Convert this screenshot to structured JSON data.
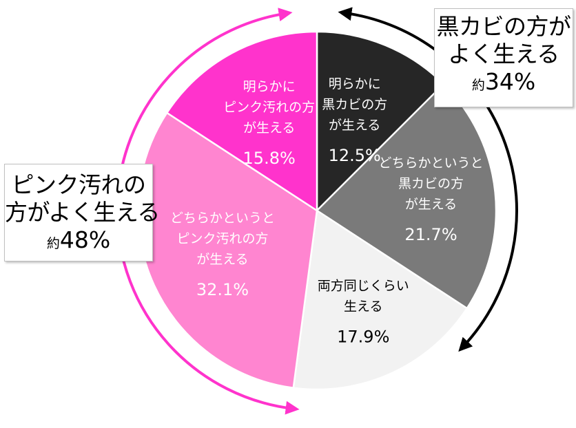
{
  "chart_data": {
    "type": "pie",
    "slices": [
      {
        "lines": [
          "明らかに",
          "黒カビの方",
          "が生える"
        ],
        "value": 12.5,
        "value_label": "12.5%",
        "color": "#262626",
        "text_color": "#ffffff"
      },
      {
        "lines": [
          "どちらかというと",
          "黒カビの方",
          "が生える"
        ],
        "value": 21.7,
        "value_label": "21.7%",
        "color": "#7a7a7a",
        "text_color": "#ffffff"
      },
      {
        "lines": [
          "両方同じくらい",
          "生える"
        ],
        "value": 17.9,
        "value_label": "17.9%",
        "color": "#f2f2f2",
        "text_color": "#000000"
      },
      {
        "lines": [
          "どちらかというと",
          "ピンク汚れの方",
          "が生える"
        ],
        "value": 32.1,
        "value_label": "32.1%",
        "color": "#ff85d0",
        "text_color": "#ffffff"
      },
      {
        "lines": [
          "明らかに",
          "ピンク汚れの方",
          "が生える"
        ],
        "value": 15.8,
        "value_label": "15.8%",
        "color": "#ff33cc",
        "text_color": "#ffffff"
      }
    ],
    "start": "12 o'clock",
    "direction": "clockwise",
    "legend": "none"
  },
  "callouts": {
    "black": {
      "line1": "黒カビの方が",
      "line2": "よく生える",
      "approx": "約",
      "value": "34%",
      "arrow_color": "#000000"
    },
    "pink": {
      "line1": "ピンク汚れの",
      "line2": "方がよく生える",
      "approx": "約",
      "value": "48%",
      "arrow_color": "#ff33cc"
    }
  }
}
